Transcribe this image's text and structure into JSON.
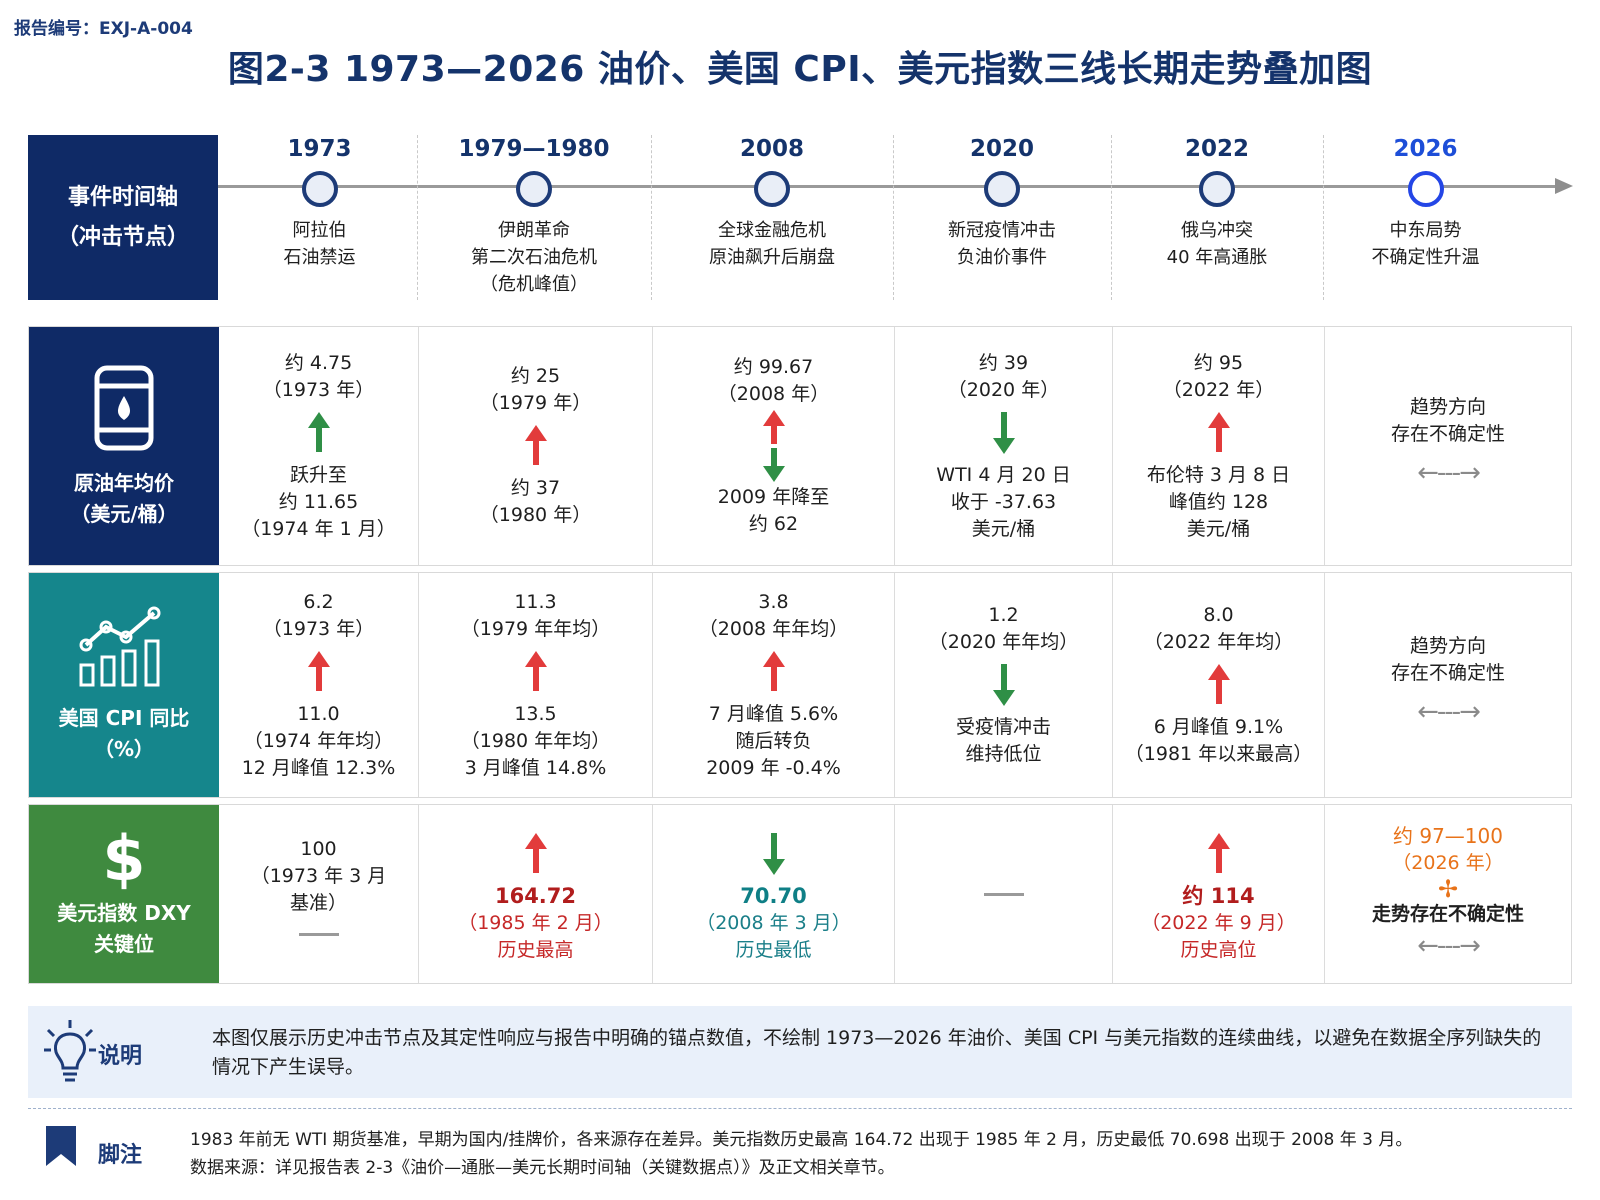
{
  "report_no": "报告编号：EXJ-A-004",
  "title": "图2-3   1973—2026 油价、美国 CPI、美元指数三线长期走势叠加图",
  "timeline": {
    "label_line1": "事件时间轴",
    "label_line2": "（冲击节点）",
    "nodes": [
      {
        "year": "1973",
        "event1": "阿拉伯",
        "event2": "石油禁运",
        "event3": ""
      },
      {
        "year": "1979—1980",
        "event1": "伊朗革命",
        "event2": "第二次石油危机",
        "event3": "（危机峰值）"
      },
      {
        "year": "2008",
        "event1": "全球金融危机",
        "event2": "原油飙升后崩盘",
        "event3": ""
      },
      {
        "year": "2020",
        "event1": "新冠疫情冲击",
        "event2": "负油价事件",
        "event3": ""
      },
      {
        "year": "2022",
        "event1": "俄乌冲突",
        "event2": "40 年高通胀",
        "event3": ""
      },
      {
        "year": "2026",
        "event1": "中东局势",
        "event2": "不确定性升温",
        "event3": ""
      }
    ]
  },
  "rows": {
    "oil": {
      "label1": "原油年均价",
      "label2": "（美元/桶）",
      "icon": "oil-barrel-icon",
      "color": "#0f2a66",
      "cells": [
        {
          "top1": "约 4.75",
          "top2": "（1973 年）",
          "arrows": [
            "up-green"
          ],
          "b1": "跃升至",
          "b2": "约 11.65",
          "b3": "（1974 年 1 月）"
        },
        {
          "top1": "约 25",
          "top2": "（1979 年）",
          "arrows": [
            "up-red"
          ],
          "b1": "约 37",
          "b2": "（1980 年）",
          "b3": ""
        },
        {
          "top1": "约 99.67",
          "top2": "（2008 年）",
          "arrows": [
            "up-red",
            "down-green"
          ],
          "b1": "2009 年降至",
          "b2": "约 62",
          "b3": ""
        },
        {
          "top1": "约 39",
          "top2": "（2020 年）",
          "arrows": [
            "down-green"
          ],
          "b1": "WTI 4 月 20 日",
          "b2": "收于 -37.63",
          "b3": "美元/桶"
        },
        {
          "top1": "约 95",
          "top2": "（2022 年）",
          "arrows": [
            "up-red"
          ],
          "b1": "布伦特 3 月 8 日",
          "b2": "峰值约 128",
          "b3": "美元/桶"
        },
        {
          "top1": "趋势方向",
          "top2": "存在不确定性"
        }
      ]
    },
    "cpi": {
      "label1": "美国 CPI 同比",
      "label2": "（%）",
      "icon": "chart-trend-icon",
      "color": "#15868c",
      "cells": [
        {
          "top1": "6.2",
          "top2": "（1973 年）",
          "arrows": [
            "up-red"
          ],
          "b1": "11.0",
          "b2": "（1974 年年均）",
          "b3": "12 月峰值 12.3%"
        },
        {
          "top1": "11.3",
          "top2": "（1979 年年均）",
          "arrows": [
            "up-red"
          ],
          "b1": "13.5",
          "b2": "（1980 年年均）",
          "b3": "3 月峰值 14.8%"
        },
        {
          "top1": "3.8",
          "top2": "（2008 年年均）",
          "arrows": [
            "up-red"
          ],
          "b1": "7 月峰值 5.6%",
          "b2": "随后转负",
          "b3": "2009 年 -0.4%"
        },
        {
          "top1": "1.2",
          "top2": "（2020 年年均）",
          "arrows": [
            "down-green"
          ],
          "b1": "受疫情冲击",
          "b2": "维持低位",
          "b3": ""
        },
        {
          "top1": "8.0",
          "top2": "（2022 年年均）",
          "arrows": [
            "up-red"
          ],
          "b1": "6 月峰值 9.1%",
          "b2": "（1981 年以来最高）",
          "b3": ""
        },
        {
          "top1": "趋势方向",
          "top2": "存在不确定性"
        }
      ]
    },
    "dxy": {
      "label1": "美元指数 DXY",
      "label2": "关键位",
      "icon": "dollar-icon",
      "color": "#3f8a3f",
      "c1": {
        "l1": "100",
        "l2": "（1973 年 3 月",
        "l3": "基准）"
      },
      "c2": {
        "value": "164.72",
        "date": "（1985 年 2 月）",
        "note": "历史最高"
      },
      "c3": {
        "value": "70.70",
        "date": "（2008 年 3 月）",
        "note": "历史最低"
      },
      "c5": {
        "value": "约 114",
        "date": "（2022 年 9 月）",
        "note": "历史高位"
      },
      "c6": {
        "value": "约 97—100",
        "date": "（2026 年）",
        "note": "走势存在不确定性"
      }
    }
  },
  "note": {
    "label": "说明",
    "text": "本图仅展示历史冲击节点及其定性响应与报告中明确的锚点数值，不绘制 1973—2026 年油价、美国 CPI 与美元指数的连续曲线，以避免在数据全序列缺失的情况下产生误导。"
  },
  "footnote": {
    "label": "脚注",
    "line1": "1983 年前无 WTI 期货基准，早期为国内/挂牌价，各来源存在差异。美元指数历史最高 164.72 出现于 1985 年 2 月，历史最低 70.698 出现于 2008 年 3 月。",
    "line2": "数据来源：详见报告表 2-3《油价—通胀—美元长期时间轴（关键数据点）》及正文相关章节。"
  }
}
